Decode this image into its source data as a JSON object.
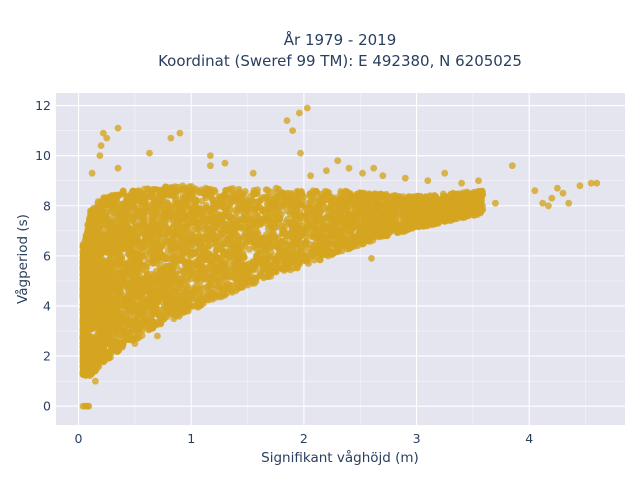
{
  "chart_data": {
    "type": "scatter",
    "title_lines": [
      "År 1979 - 2019",
      "Koordinat (Sweref 99 TM): E 492380, N 6205025"
    ],
    "xlabel": "Signifikant våghöjd (m)",
    "ylabel": "Vågperiod (s)",
    "xlim": [
      -0.2,
      4.85
    ],
    "ylim": [
      -0.75,
      12.5
    ],
    "xticks": [
      0,
      1,
      2,
      3,
      4
    ],
    "yticks": [
      0,
      2,
      4,
      6,
      8,
      10,
      12
    ],
    "grid": true,
    "marker_color": "#D4A520",
    "plot_background": "#E5E5EF",
    "distribution": {
      "bands": [
        {
          "x": 0.05,
          "y_min": 1.2,
          "y_max": 6.5
        },
        {
          "x": 0.1,
          "y_min": 1.2,
          "y_max": 7.8
        },
        {
          "x": 0.2,
          "y_min": 1.6,
          "y_max": 8.3
        },
        {
          "x": 0.4,
          "y_min": 2.4,
          "y_max": 8.6
        },
        {
          "x": 0.6,
          "y_min": 2.9,
          "y_max": 8.7
        },
        {
          "x": 0.8,
          "y_min": 3.4,
          "y_max": 8.8
        },
        {
          "x": 1.0,
          "y_min": 3.8,
          "y_max": 8.8
        },
        {
          "x": 1.2,
          "y_min": 4.2,
          "y_max": 8.7
        },
        {
          "x": 1.5,
          "y_min": 4.8,
          "y_max": 8.7
        },
        {
          "x": 1.8,
          "y_min": 5.3,
          "y_max": 8.7
        },
        {
          "x": 2.0,
          "y_min": 5.6,
          "y_max": 8.6
        },
        {
          "x": 2.3,
          "y_min": 6.1,
          "y_max": 8.6
        },
        {
          "x": 2.6,
          "y_min": 6.6,
          "y_max": 8.5
        },
        {
          "x": 3.0,
          "y_min": 7.1,
          "y_max": 8.4
        },
        {
          "x": 3.3,
          "y_min": 7.4,
          "y_max": 8.5
        },
        {
          "x": 3.6,
          "y_min": 7.7,
          "y_max": 8.6
        },
        {
          "x": 4.0,
          "y_min": 8.0,
          "y_max": 8.8
        },
        {
          "x": 4.3,
          "y_min": 8.3,
          "y_max": 8.9
        }
      ]
    },
    "points": [
      [
        0.04,
        0.0
      ],
      [
        0.06,
        0.0
      ],
      [
        0.08,
        0.0
      ],
      [
        0.09,
        0.0
      ],
      [
        0.22,
        10.9
      ],
      [
        0.35,
        11.1
      ],
      [
        0.2,
        10.4
      ],
      [
        0.25,
        10.7
      ],
      [
        0.19,
        10.0
      ],
      [
        0.63,
        10.1
      ],
      [
        0.82,
        10.7
      ],
      [
        0.9,
        10.9
      ],
      [
        1.17,
        10.0
      ],
      [
        1.17,
        9.6
      ],
      [
        1.85,
        11.4
      ],
      [
        1.96,
        11.7
      ],
      [
        2.03,
        11.9
      ],
      [
        1.9,
        11.0
      ],
      [
        1.97,
        10.1
      ],
      [
        2.06,
        9.2
      ],
      [
        2.4,
        9.5
      ],
      [
        2.52,
        9.3
      ],
      [
        2.62,
        9.5
      ],
      [
        2.7,
        9.2
      ],
      [
        3.1,
        9.0
      ],
      [
        3.25,
        9.3
      ],
      [
        3.4,
        8.9
      ],
      [
        3.55,
        9.0
      ],
      [
        3.85,
        9.6
      ],
      [
        4.05,
        8.6
      ],
      [
        4.12,
        8.1
      ],
      [
        4.2,
        8.3
      ],
      [
        4.25,
        8.7
      ],
      [
        4.3,
        8.5
      ],
      [
        4.45,
        8.8
      ],
      [
        4.55,
        8.9
      ],
      [
        4.6,
        8.9
      ],
      [
        4.17,
        8.0
      ],
      [
        4.35,
        8.1
      ],
      [
        2.6,
        5.9
      ],
      [
        3.05,
        7.2
      ],
      [
        2.8,
        7.0
      ],
      [
        2.3,
        6.4
      ],
      [
        1.9,
        6.0
      ],
      [
        0.35,
        9.5
      ],
      [
        1.3,
        9.7
      ],
      [
        2.3,
        9.8
      ],
      [
        1.05,
        5.0
      ],
      [
        0.7,
        2.8
      ],
      [
        0.5,
        2.5
      ],
      [
        0.3,
        2.2
      ],
      [
        0.15,
        1.0
      ],
      [
        0.08,
        1.3
      ],
      [
        0.12,
        9.3
      ],
      [
        2.9,
        9.1
      ],
      [
        2.2,
        9.4
      ],
      [
        1.55,
        9.3
      ],
      [
        3.2,
        7.6
      ],
      [
        3.7,
        8.1
      ]
    ]
  }
}
